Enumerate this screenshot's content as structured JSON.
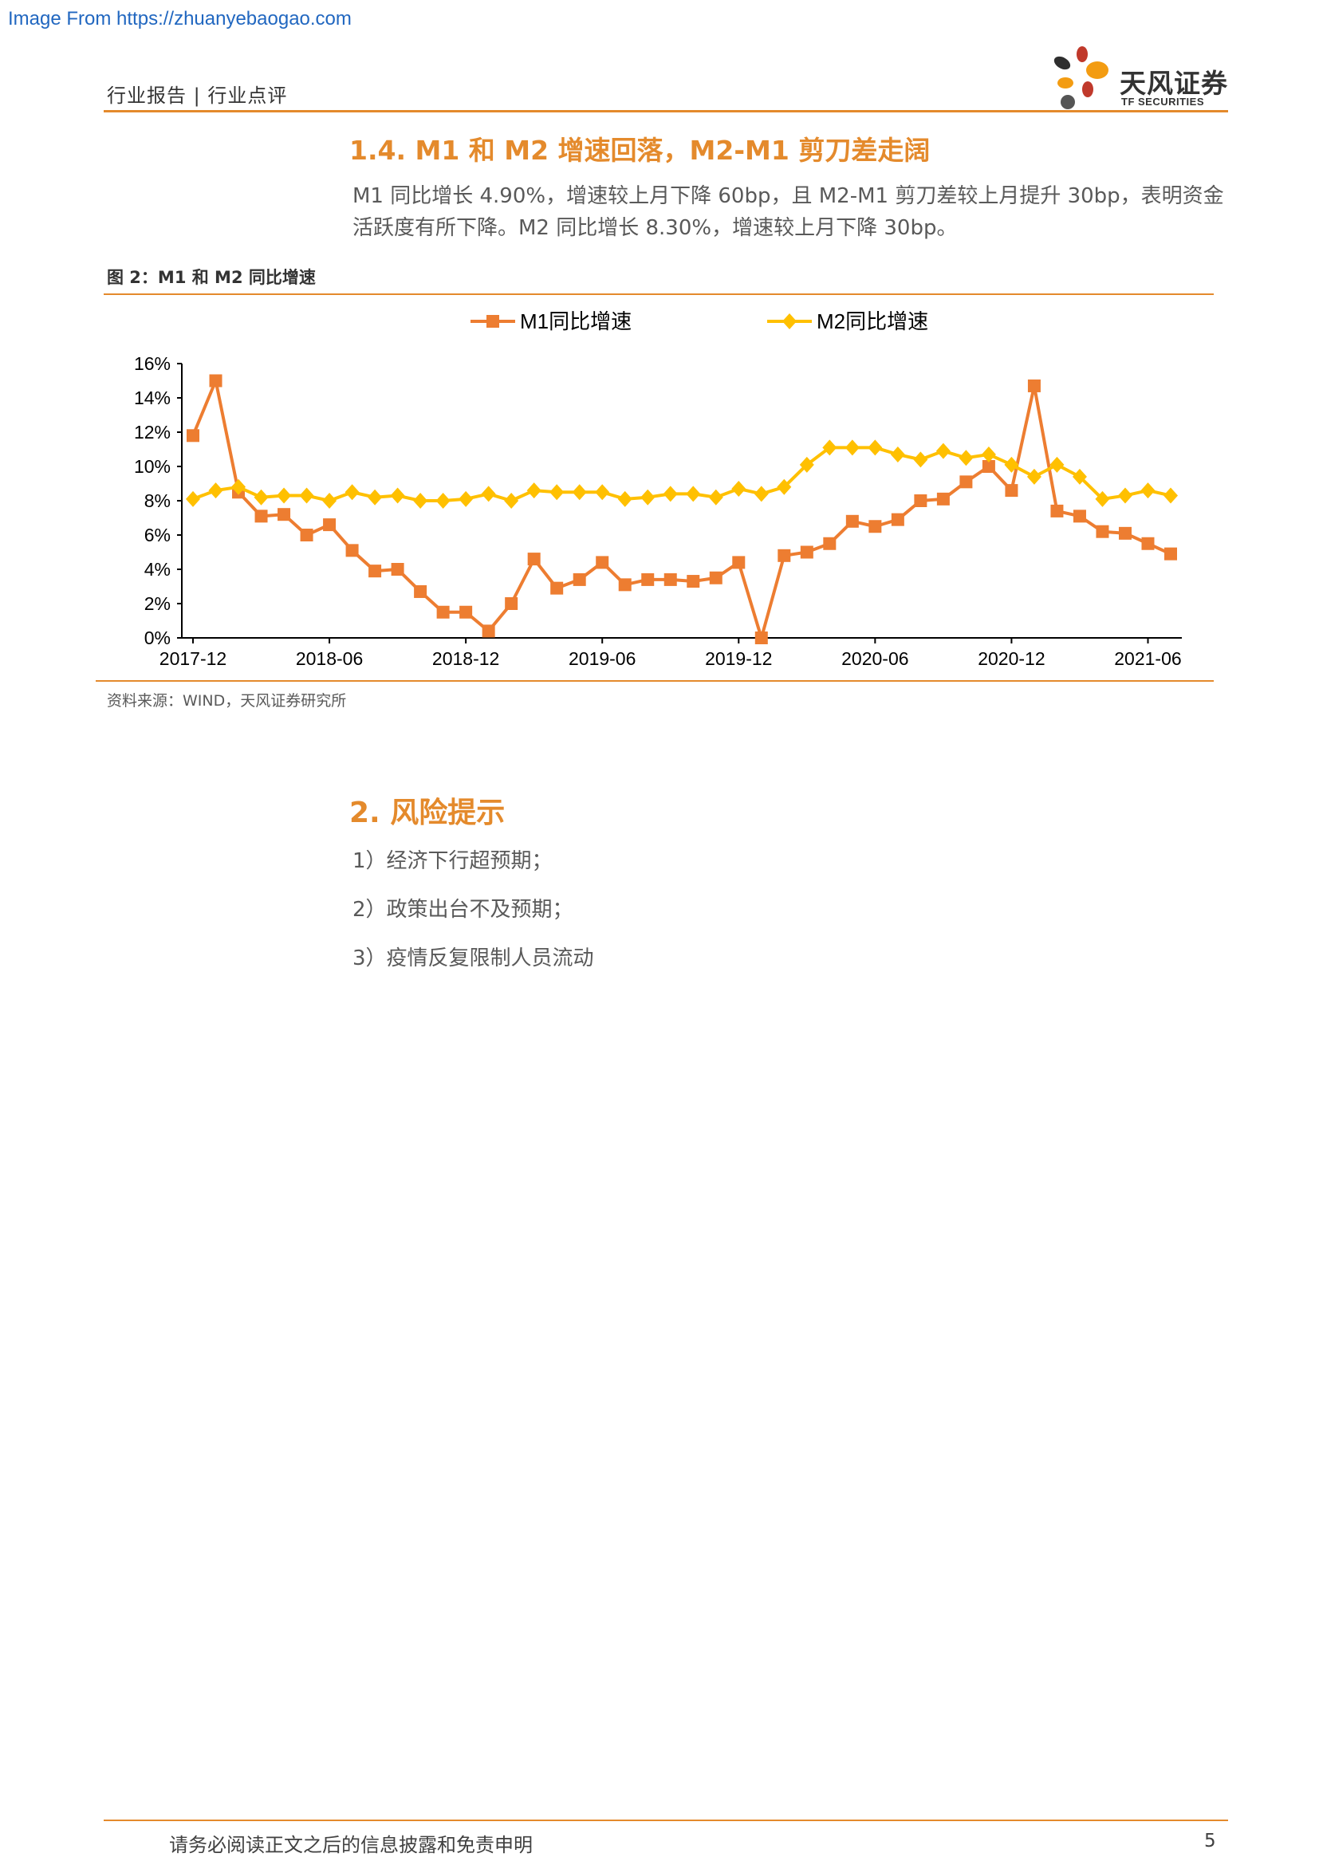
{
  "watermark": "Image From https://zhuanyebaogao.com",
  "header": {
    "left_text": "行业报告 | 行业点评",
    "logo_cn": "天风证券",
    "logo_en": "TF SECURITIES",
    "accent": "#e48a2c"
  },
  "section1": {
    "title": "1.4. M1 和 M2 增速回落，M2-M1 剪刀差走阔",
    "paragraph": "M1 同比增长 4.90%，增速较上月下降 60bp，且 M2-M1 剪刀差较上月提升 30bp，表明资金活跃度有所下降。M2 同比增长 8.30%，增速较上月下降 30bp。"
  },
  "figure": {
    "caption": "图 2：M1 和 M2 同比增速",
    "source": "资料来源：WIND，天风证券研究所"
  },
  "chart_data": {
    "type": "line",
    "title": "",
    "xlabel": "",
    "ylabel": "",
    "ylim": [
      0,
      16
    ],
    "yticks": [
      "0%",
      "2%",
      "4%",
      "6%",
      "8%",
      "10%",
      "12%",
      "14%",
      "16%"
    ],
    "xtick_labels": [
      "2017-12",
      "2018-06",
      "2018-12",
      "2019-06",
      "2019-12",
      "2020-06",
      "2020-12",
      "2021-06"
    ],
    "x": [
      "2017-12",
      "2018-01",
      "2018-02",
      "2018-03",
      "2018-04",
      "2018-05",
      "2018-06",
      "2018-07",
      "2018-08",
      "2018-09",
      "2018-10",
      "2018-11",
      "2018-12",
      "2019-01",
      "2019-02",
      "2019-03",
      "2019-04",
      "2019-05",
      "2019-06",
      "2019-07",
      "2019-08",
      "2019-09",
      "2019-10",
      "2019-11",
      "2019-12",
      "2020-01",
      "2020-02",
      "2020-03",
      "2020-04",
      "2020-05",
      "2020-06",
      "2020-07",
      "2020-08",
      "2020-09",
      "2020-10",
      "2020-11",
      "2020-12",
      "2021-01",
      "2021-02",
      "2021-03",
      "2021-04",
      "2021-05",
      "2021-06",
      "2021-07"
    ],
    "legend_position": "top",
    "grid": false,
    "series": [
      {
        "name": "M1同比增速",
        "color": "#ed7d31",
        "marker": "square",
        "values": [
          11.8,
          15.0,
          8.5,
          7.1,
          7.2,
          6.0,
          6.6,
          5.1,
          3.9,
          4.0,
          2.7,
          1.5,
          1.5,
          0.4,
          2.0,
          4.6,
          2.9,
          3.4,
          4.4,
          3.1,
          3.4,
          3.4,
          3.3,
          3.5,
          4.4,
          0.0,
          4.8,
          5.0,
          5.5,
          6.8,
          6.5,
          6.9,
          8.0,
          8.1,
          9.1,
          10.0,
          8.6,
          14.7,
          7.4,
          7.1,
          6.2,
          6.1,
          5.5,
          4.9
        ]
      },
      {
        "name": "M2同比增速",
        "color": "#ffc000",
        "marker": "diamond",
        "values": [
          8.1,
          8.6,
          8.8,
          8.2,
          8.3,
          8.3,
          8.0,
          8.5,
          8.2,
          8.3,
          8.0,
          8.0,
          8.1,
          8.4,
          8.0,
          8.6,
          8.5,
          8.5,
          8.5,
          8.1,
          8.2,
          8.4,
          8.4,
          8.2,
          8.7,
          8.4,
          8.8,
          10.1,
          11.1,
          11.1,
          11.1,
          10.7,
          10.4,
          10.9,
          10.5,
          10.7,
          10.1,
          9.4,
          10.1,
          9.4,
          8.1,
          8.3,
          8.6,
          8.3
        ]
      }
    ]
  },
  "section2": {
    "title": "2. 风险提示",
    "items": [
      "1）经济下行超预期；",
      "2）政策出台不及预期；",
      "3）疫情反复限制人员流动"
    ]
  },
  "footer": {
    "disclaimer": "请务必阅读正文之后的信息披露和免责申明",
    "page_number": "5"
  }
}
